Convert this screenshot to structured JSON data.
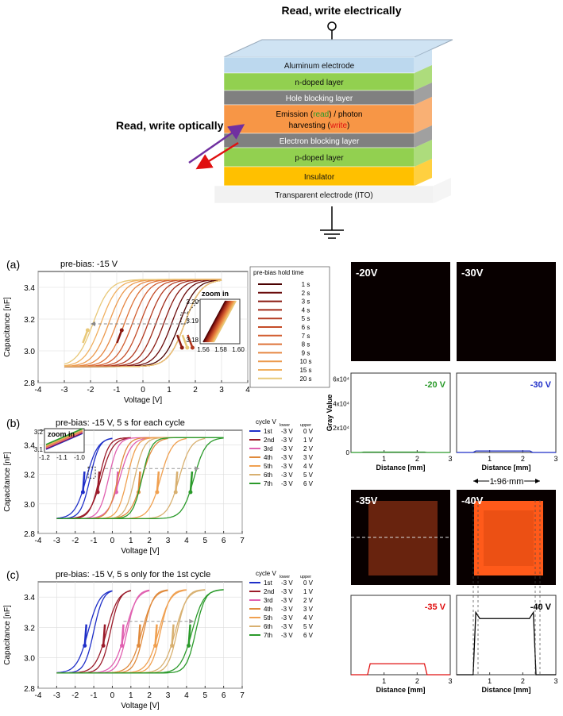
{
  "stack": {
    "top_label": "Read, write electrically",
    "side_label": "Read, write optically",
    "layers": [
      {
        "label": "Aluminum electrode",
        "color": "#bcd8ee"
      },
      {
        "label": "n-doped layer",
        "color": "#92d050"
      },
      {
        "label": "Hole blocking layer",
        "color": "#808080"
      },
      {
        "label_parts": [
          "Emission (",
          "read",
          ") / photon",
          "harvesting (",
          "write",
          ")"
        ],
        "color": "#f79646"
      },
      {
        "label": "Electron blocking layer",
        "color": "#808080"
      },
      {
        "label": "p-doped layer",
        "color": "#92d050"
      },
      {
        "label": "Insulator",
        "color": "#ffc000"
      },
      {
        "label": "Transparent electrode (ITO)",
        "color": "#f2f2f2"
      }
    ]
  },
  "panel_a": {
    "letter": "(a)",
    "title": "pre-bias: -15 V",
    "legend_title": "pre-bias hold time",
    "legend": [
      "1 s",
      "2 s",
      "3 s",
      "4 s",
      "5 s",
      "6 s",
      "7 s",
      "8 s",
      "9 s",
      "10 s",
      "15 s",
      "20 s"
    ],
    "legend_colors": [
      "#4a0000",
      "#6a0a0a",
      "#8a1a12",
      "#a02a18",
      "#b33a20",
      "#c44c28",
      "#d25e30",
      "#de7238",
      "#e68642",
      "#ec9a4e",
      "#f0b060",
      "#e8c878"
    ],
    "inset_label": "zoom in",
    "inset_yticks": [
      "3.20",
      "3.19",
      "3.18"
    ],
    "inset_xticks": [
      "1.56",
      "1.58",
      "1.60"
    ]
  },
  "panel_b": {
    "letter": "(b)",
    "title": "pre-bias: -15 V, 5 s for each cycle",
    "inset_label": "zoom in",
    "inset_yticks": [
      "3.2",
      "3.1"
    ],
    "inset_xticks": [
      "-1.2",
      "-1.1",
      "-1.0"
    ]
  },
  "panel_c": {
    "letter": "(c)",
    "title": "pre-bias: -15 V, 5 s only for  the 1st cycle"
  },
  "cycle_legend": {
    "header": "cycle V",
    "sub_lower": "lower",
    "sub_upper": "upper",
    "rows": [
      {
        "cycle": "1st",
        "lower": "-3 V",
        "upper": "0 V",
        "color": "#1f2fc8"
      },
      {
        "cycle": "2nd",
        "lower": "-3 V",
        "upper": "1 V",
        "color": "#9b1b2a"
      },
      {
        "cycle": "3rd",
        "lower": "-3 V",
        "upper": "2 V",
        "color": "#e060b0"
      },
      {
        "cycle": "4th",
        "lower": "-3 V",
        "upper": "3 V",
        "color": "#e08a3c"
      },
      {
        "cycle": "5th",
        "lower": "-3 V",
        "upper": "4 V",
        "color": "#f0a050"
      },
      {
        "cycle": "6th",
        "lower": "-3 V",
        "upper": "5 V",
        "color": "#d8b070"
      },
      {
        "cycle": "7th",
        "lower": "-3 V",
        "upper": "6 V",
        "color": "#2a9a2a"
      }
    ]
  },
  "axes": {
    "ylabel": "Capacitance [nF]",
    "xlabel": "Voltage [V]",
    "yticks": [
      "3.4",
      "3.2",
      "3.0",
      "2.8"
    ],
    "xticks_a": [
      "-4",
      "-3",
      "-2",
      "-1",
      "0",
      "1",
      "2",
      "3",
      "4"
    ],
    "xticks_bc": [
      "-4",
      "-3",
      "-2",
      "-1",
      "0",
      "1",
      "2",
      "3",
      "4",
      "5",
      "6",
      "7"
    ]
  },
  "images": {
    "top_left": "-20V",
    "top_right": "-30V",
    "bottom_left": "-35V",
    "bottom_right": "-40V",
    "dimension": "1.96 mm"
  },
  "profiles": {
    "ylabel": "Gray Value",
    "xlabel": "Distance [mm]",
    "yticks": [
      "6x10⁴",
      "4x10⁴",
      "2x10⁴",
      "0"
    ],
    "xticks": [
      "1",
      "2",
      "3"
    ],
    "tags": [
      {
        "text": "-20 V",
        "color": "#2a9a2a"
      },
      {
        "text": "-30 V",
        "color": "#1f2fc8"
      },
      {
        "text": "-35 V",
        "color": "#e01010"
      },
      {
        "text": "-40 V",
        "color": "#000000"
      }
    ]
  },
  "chart_data": [
    {
      "type": "line",
      "title": "pre-bias: -15 V",
      "xlabel": "Voltage [V]",
      "ylabel": "Capacitance [nF]",
      "xlim": [
        -4,
        4
      ],
      "ylim": [
        2.8,
        3.5
      ],
      "series": [
        {
          "name": "1 s",
          "x50_up": 1.4
        },
        {
          "name": "2 s",
          "x50_up": 1.1
        },
        {
          "name": "3 s",
          "x50_up": 0.8
        },
        {
          "name": "4 s",
          "x50_up": 0.5
        },
        {
          "name": "5 s",
          "x50_up": 0.2
        },
        {
          "name": "6 s",
          "x50_up": -0.1
        },
        {
          "name": "7 s",
          "x50_up": -0.4
        },
        {
          "name": "8 s",
          "x50_up": -0.7
        },
        {
          "name": "9 s",
          "x50_up": -1.0
        },
        {
          "name": "10 s",
          "x50_up": -1.3
        },
        {
          "name": "15 s",
          "x50_up": -1.6
        },
        {
          "name": "20 s",
          "x50_up": -1.9
        }
      ],
      "cmin": 2.9,
      "cmax": 3.45,
      "x50_down": 1.6,
      "xstart": -3,
      "xend": 3
    },
    {
      "type": "line",
      "title": "pre-bias: -15 V, 5 s for each cycle",
      "xlabel": "Voltage [V]",
      "ylabel": "Capacitance [nF]",
      "xlim": [
        -4,
        7
      ],
      "ylim": [
        2.8,
        3.5
      ],
      "series": [
        {
          "name": "1st",
          "x50_up": -1.2,
          "upper": 0,
          "x50_down": -1.4
        },
        {
          "name": "2nd",
          "x50_up": -0.7,
          "upper": 1,
          "x50_down": -0.6
        },
        {
          "name": "3rd",
          "x50_up": -0.2,
          "upper": 2,
          "x50_down": 0.4
        },
        {
          "name": "4th",
          "x50_up": 0.3,
          "upper": 3,
          "x50_down": 1.6
        },
        {
          "name": "5th",
          "x50_up": 0.8,
          "upper": 4,
          "x50_down": 2.6
        },
        {
          "name": "6th",
          "x50_up": 1.2,
          "upper": 5,
          "x50_down": 3.6
        },
        {
          "name": "7th",
          "x50_up": 1.6,
          "upper": 6,
          "x50_down": 4.4
        }
      ],
      "cmin": 2.9,
      "cmax": 3.45
    },
    {
      "type": "line",
      "title": "pre-bias: -15 V, 5 s only for  the 1st cycle",
      "xlabel": "Voltage [V]",
      "ylabel": "Capacitance [nF]",
      "xlim": [
        -4,
        7
      ],
      "ylim": [
        2.8,
        3.5
      ],
      "series": [
        {
          "name": "1st",
          "x50_up": -1.0,
          "upper": 0,
          "x50_down": -1.3
        },
        {
          "name": "2nd",
          "x50_up": -0.1,
          "upper": 1,
          "x50_down": -0.3
        },
        {
          "name": "3rd",
          "x50_up": 0.8,
          "upper": 2,
          "x50_down": 0.7
        },
        {
          "name": "4th",
          "x50_up": 1.7,
          "upper": 3,
          "x50_down": 1.6
        },
        {
          "name": "5th",
          "x50_up": 2.6,
          "upper": 4,
          "x50_down": 2.5
        },
        {
          "name": "6th",
          "x50_up": 3.5,
          "upper": 5,
          "x50_down": 3.4
        },
        {
          "name": "7th",
          "x50_up": 4.5,
          "upper": 6,
          "x50_down": 4.3
        }
      ],
      "cmin": 2.9,
      "cmax": 3.45
    },
    {
      "type": "line",
      "xlabel": "Distance [mm]",
      "ylabel": "Gray Value",
      "xlim": [
        0,
        3
      ],
      "ylim": [
        0,
        65000
      ],
      "series": [
        {
          "name": "-20 V",
          "plateau": 300,
          "x_start": 0.3,
          "x_end": 2.3
        },
        {
          "name": "-30 V",
          "plateau": 1200,
          "x_start": 0.5,
          "x_end": 2.3
        },
        {
          "name": "-35 V",
          "plateau": 9000,
          "x_start": 0.5,
          "x_end": 2.3
        },
        {
          "name": "-40 V",
          "plateau": 46000,
          "edge_peak": 51000,
          "x_start": 0.5,
          "x_end": 2.4
        }
      ]
    }
  ]
}
